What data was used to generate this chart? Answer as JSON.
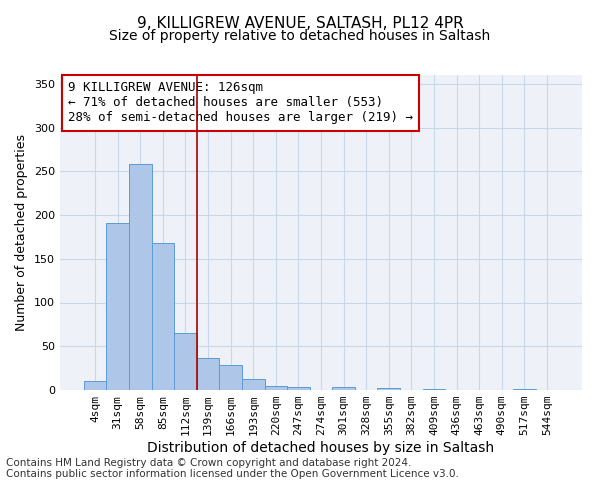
{
  "title_line1": "9, KILLIGREW AVENUE, SALTASH, PL12 4PR",
  "title_line2": "Size of property relative to detached houses in Saltash",
  "xlabel": "Distribution of detached houses by size in Saltash",
  "ylabel": "Number of detached properties",
  "bin_labels": [
    "4sqm",
    "31sqm",
    "58sqm",
    "85sqm",
    "112sqm",
    "139sqm",
    "166sqm",
    "193sqm",
    "220sqm",
    "247sqm",
    "274sqm",
    "301sqm",
    "328sqm",
    "355sqm",
    "382sqm",
    "409sqm",
    "436sqm",
    "463sqm",
    "490sqm",
    "517sqm",
    "544sqm"
  ],
  "bar_values": [
    10,
    191,
    258,
    168,
    65,
    37,
    29,
    13,
    5,
    3,
    0,
    3,
    0,
    2,
    0,
    1,
    0,
    0,
    0,
    1,
    0
  ],
  "bar_color": "#aec6e8",
  "bar_edge_color": "#5b9bd5",
  "grid_color": "#c8d8e8",
  "background_color": "#eef2f8",
  "vline_color": "#aa0000",
  "annotation_text": "9 KILLIGREW AVENUE: 126sqm\n← 71% of detached houses are smaller (553)\n28% of semi-detached houses are larger (219) →",
  "annotation_box_color": "white",
  "annotation_box_edge": "#cc0000",
  "ylim": [
    0,
    360
  ],
  "yticks": [
    0,
    50,
    100,
    150,
    200,
    250,
    300,
    350
  ],
  "footer_text": "Contains HM Land Registry data © Crown copyright and database right 2024.\nContains public sector information licensed under the Open Government Licence v3.0.",
  "title_fontsize": 11,
  "subtitle_fontsize": 10,
  "xlabel_fontsize": 10,
  "ylabel_fontsize": 9,
  "tick_fontsize": 8,
  "annotation_fontsize": 9,
  "footer_fontsize": 7.5
}
